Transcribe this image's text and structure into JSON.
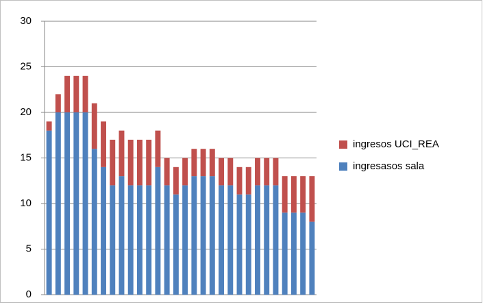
{
  "chart_data": {
    "type": "stacked_bar",
    "categories": [
      null,
      null,
      null,
      null,
      null,
      null,
      null,
      null,
      null,
      null,
      null,
      null,
      null,
      null,
      null,
      null,
      null,
      null,
      null,
      null,
      null,
      null,
      null,
      null,
      null,
      null,
      null,
      null,
      null,
      null
    ],
    "series": [
      {
        "name": "ingresasos sala",
        "color": "#4f81bd",
        "values": [
          18,
          20,
          20,
          20,
          20,
          16,
          14,
          12,
          13,
          12,
          12,
          12,
          14,
          12,
          11,
          12,
          13,
          13,
          13,
          12,
          12,
          11,
          11,
          12,
          12,
          12,
          9,
          9,
          9,
          8
        ]
      },
      {
        "name": "ingresos UCI_REA",
        "color": "#c0504d",
        "values": [
          1,
          2,
          4,
          4,
          4,
          5,
          5,
          5,
          5,
          5,
          5,
          5,
          4,
          3,
          3,
          3,
          3,
          3,
          3,
          3,
          3,
          3,
          3,
          3,
          3,
          3,
          4,
          4,
          4,
          5
        ]
      }
    ],
    "ylim": [
      0,
      30
    ],
    "yticks": [
      0,
      5,
      10,
      15,
      20,
      25,
      30
    ],
    "grid": true,
    "legend": "right"
  }
}
